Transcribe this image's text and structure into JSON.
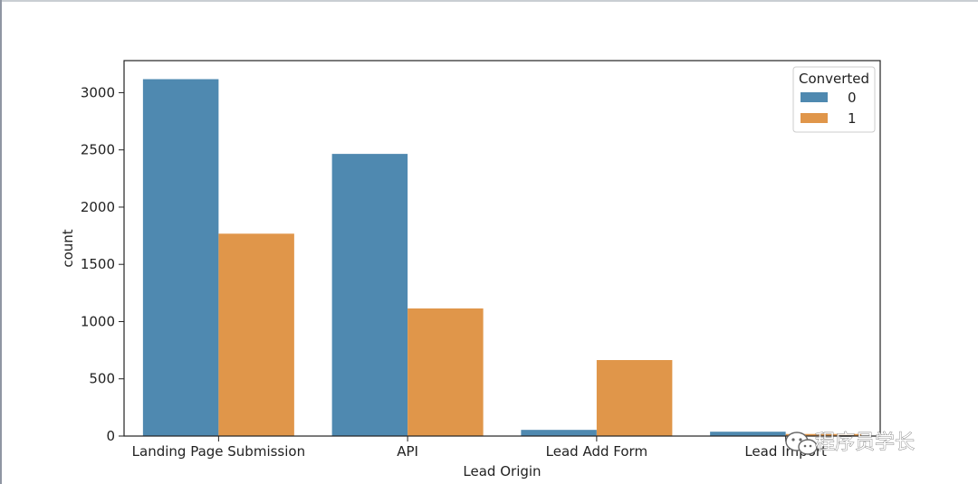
{
  "chart_data": {
    "type": "bar",
    "categories": [
      "Landing Page Submission",
      "API",
      "Lead Add Form",
      "Lead Import"
    ],
    "series": [
      {
        "name": "0",
        "values": [
          3118,
          2465,
          54,
          38
        ],
        "color": "#4f89b0"
      },
      {
        "name": "1",
        "values": [
          1768,
          1115,
          664,
          18
        ],
        "color": "#e0964a"
      }
    ],
    "xlabel": "Lead Origin",
    "ylabel": "count",
    "ylim": [
      0,
      3280
    ],
    "yticks": [
      0,
      500,
      1000,
      1500,
      2000,
      2500,
      3000
    ],
    "legend": {
      "title": "Converted",
      "placement": "top-right"
    },
    "grid": false
  },
  "watermark": {
    "text": "程序员学长",
    "icon": "wechat-icon"
  }
}
